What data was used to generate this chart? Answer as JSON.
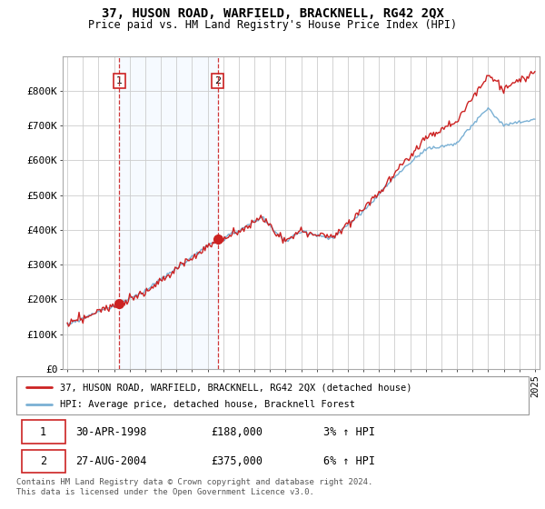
{
  "title": "37, HUSON ROAD, WARFIELD, BRACKNELL, RG42 2QX",
  "subtitle": "Price paid vs. HM Land Registry's House Price Index (HPI)",
  "ylim": [
    0,
    900000
  ],
  "yticks": [
    0,
    100000,
    200000,
    300000,
    400000,
    500000,
    600000,
    700000,
    800000
  ],
  "ytick_labels": [
    "£0",
    "£100K",
    "£200K",
    "£300K",
    "£400K",
    "£500K",
    "£600K",
    "£700K",
    "£800K"
  ],
  "xlim_start": 1994.7,
  "xlim_end": 2025.3,
  "hpi_color": "#7ab0d4",
  "price_color": "#cc2222",
  "shade_color": "#ddeeff",
  "sale1_year": 1998.33,
  "sale1_price": 188000,
  "sale2_year": 2004.65,
  "sale2_price": 375000,
  "legend_line1": "37, HUSON ROAD, WARFIELD, BRACKNELL, RG42 2QX (detached house)",
  "legend_line2": "HPI: Average price, detached house, Bracknell Forest",
  "table_row1": [
    "1",
    "30-APR-1998",
    "£188,000",
    "3% ↑ HPI"
  ],
  "table_row2": [
    "2",
    "27-AUG-2004",
    "£375,000",
    "6% ↑ HPI"
  ],
  "footnote": "Contains HM Land Registry data © Crown copyright and database right 2024.\nThis data is licensed under the Open Government Licence v3.0.",
  "background_color": "#ffffff",
  "grid_color": "#cccccc"
}
